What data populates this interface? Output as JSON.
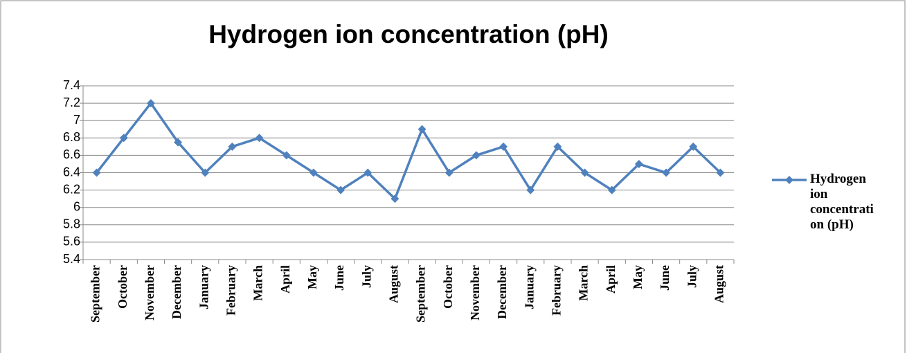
{
  "chart_data": {
    "type": "line",
    "title": "Hydrogen ion concentration (pH)",
    "categories": [
      "September",
      "October",
      "November",
      "December",
      "January",
      "February",
      "March",
      "April",
      "May",
      "June",
      "July",
      "August",
      "September",
      "October",
      "November",
      "December",
      "January",
      "February",
      "March",
      "April",
      "May",
      "June",
      "July",
      "August"
    ],
    "series": [
      {
        "name": "Hydrogen ion concentration (pH)",
        "color": "#4f81bd",
        "values": [
          6.4,
          6.8,
          7.2,
          6.75,
          6.4,
          6.7,
          6.8,
          6.6,
          6.4,
          6.2,
          6.4,
          6.1,
          6.9,
          6.4,
          6.6,
          6.7,
          6.2,
          6.7,
          6.4,
          6.2,
          6.5,
          6.4,
          6.7,
          6.4
        ]
      }
    ],
    "ylim": [
      5.4,
      7.4
    ],
    "yticks": [
      5.4,
      5.6,
      5.8,
      6,
      6.2,
      6.4,
      6.6,
      6.8,
      7,
      7.2,
      7.4
    ],
    "grid": true,
    "legend": "right"
  }
}
